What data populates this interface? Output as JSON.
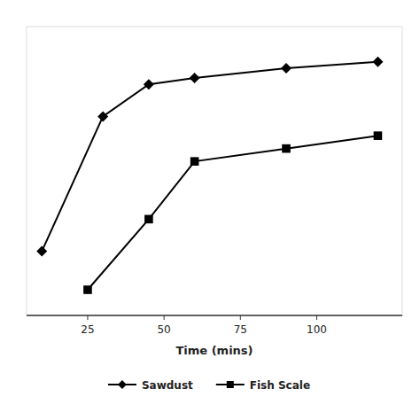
{
  "chart_data": {
    "type": "line",
    "x_label": "Time (mins)",
    "series": [
      {
        "name": "Sawdust",
        "color": "#000000",
        "marker": "diamond",
        "x": [
          10,
          30,
          45,
          60,
          90,
          120
        ],
        "values": [
          20,
          62,
          72,
          74,
          77,
          79
        ]
      },
      {
        "name": "Fish Scale",
        "color": "#000000",
        "marker": "square",
        "x": [
          25,
          45,
          60,
          90,
          120
        ],
        "values": [
          8,
          30,
          48,
          52,
          56
        ]
      }
    ],
    "xlim": [
      5,
      128
    ],
    "xticks": [
      25,
      50,
      75,
      100
    ],
    "ylim": [
      0,
      90
    ],
    "tick_labels": "x",
    "grid": false,
    "legend": "bottom"
  }
}
